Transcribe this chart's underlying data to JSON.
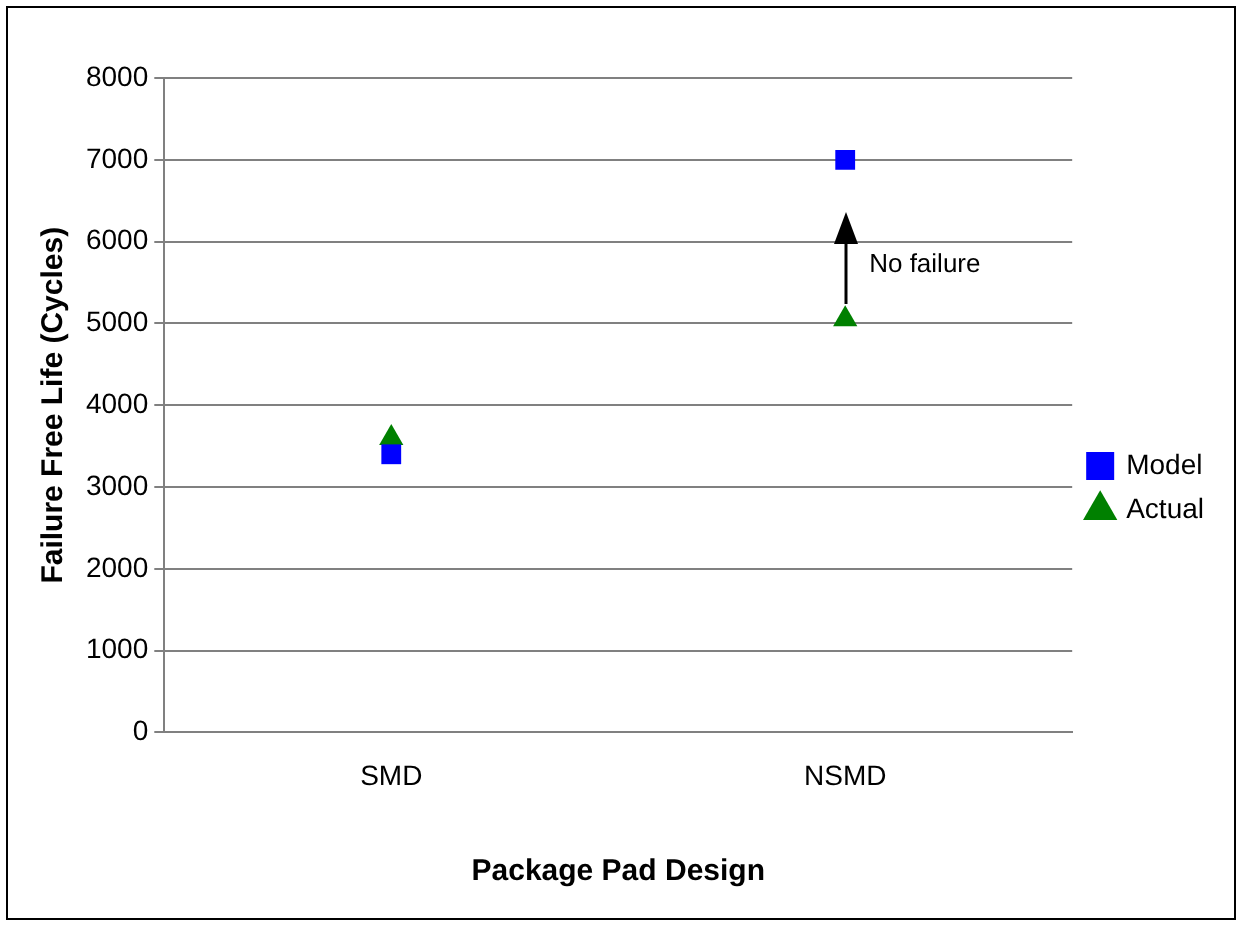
{
  "chart_data": {
    "type": "scatter",
    "xlabel": "Package Pad Design",
    "ylabel": "Failure Free Life (Cycles)",
    "categories": [
      "SMD",
      "NSMD"
    ],
    "series": [
      {
        "name": "Model",
        "color": "#0000ff",
        "marker": "square",
        "values": [
          3400,
          7000
        ]
      },
      {
        "name": "Actual",
        "color": "#008000",
        "marker": "triangle",
        "values": [
          3600,
          5050
        ]
      }
    ],
    "ylim": [
      0,
      8000
    ],
    "yticks": [
      0,
      1000,
      2000,
      3000,
      4000,
      5000,
      6000,
      7000,
      8000
    ],
    "grid": "y",
    "legend": "right",
    "annotations": [
      "No failure"
    ]
  }
}
